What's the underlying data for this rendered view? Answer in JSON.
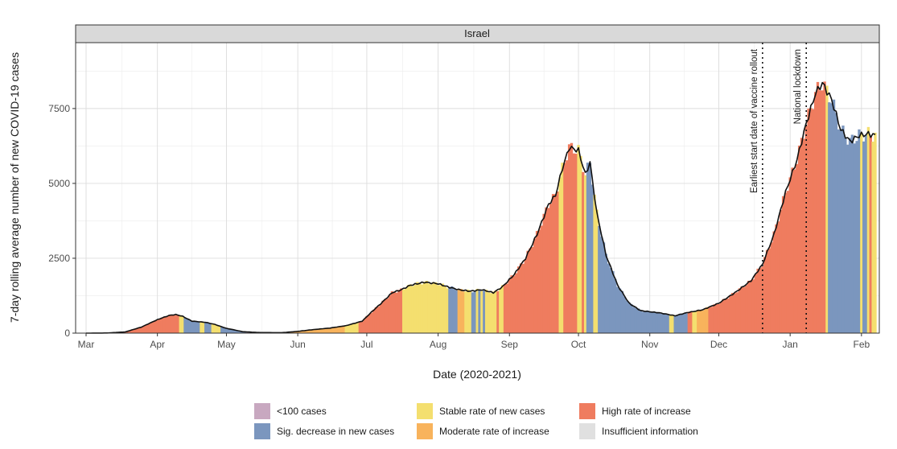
{
  "chart_data": {
    "type": "bar",
    "facet_title": "Israel",
    "xlabel": "Date (2020-2021)",
    "ylabel": "7-day rolling average number of new COVID-19 cases",
    "x_range": [
      "2020-03-01",
      "2021-02-07"
    ],
    "ylim": [
      0,
      9700
    ],
    "y_ticks": [
      0,
      2500,
      5000,
      7500
    ],
    "y_tick_labels": [
      "0",
      "2500",
      "5000",
      "7500"
    ],
    "x_ticks": [
      {
        "date": "2020-03-01",
        "label": "Mar"
      },
      {
        "date": "2020-04-01",
        "label": "Apr"
      },
      {
        "date": "2020-05-01",
        "label": "May"
      },
      {
        "date": "2020-06-01",
        "label": "Jun"
      },
      {
        "date": "2020-07-01",
        "label": "Jul"
      },
      {
        "date": "2020-08-01",
        "label": "Aug"
      },
      {
        "date": "2020-09-01",
        "label": "Sep"
      },
      {
        "date": "2020-10-01",
        "label": "Oct"
      },
      {
        "date": "2020-11-01",
        "label": "Nov"
      },
      {
        "date": "2020-12-01",
        "label": "Dec"
      },
      {
        "date": "2021-01-01",
        "label": "Jan"
      },
      {
        "date": "2021-02-01",
        "label": "Feb"
      }
    ],
    "grid": true,
    "legend_position": "bottom",
    "annotations": [
      {
        "date": "2020-12-20",
        "label": "Earliest start date of vaccine rollout"
      },
      {
        "date": "2021-01-08",
        "label": "National lockdown"
      }
    ],
    "categories": [
      {
        "key": "lt100",
        "name": "<100 cases",
        "color": "#c8a8c0"
      },
      {
        "key": "dec",
        "name": "Sig. decrease in new cases",
        "color": "#7b96be"
      },
      {
        "key": "stable",
        "name": "Stable rate of new cases",
        "color": "#f4df6f"
      },
      {
        "key": "mod",
        "name": "Moderate rate of increase",
        "color": "#f8b35c"
      },
      {
        "key": "high",
        "name": "High rate of increase",
        "color": "#ef7c5f"
      },
      {
        "key": "insuf",
        "name": "Insufficient information",
        "color": "#e0e0e0"
      }
    ],
    "rolling_average_keypoints": [
      [
        "2020-03-01",
        0
      ],
      [
        "2020-03-10",
        5
      ],
      [
        "2020-03-18",
        40
      ],
      [
        "2020-03-25",
        200
      ],
      [
        "2020-04-01",
        450
      ],
      [
        "2020-04-06",
        590
      ],
      [
        "2020-04-09",
        620
      ],
      [
        "2020-04-12",
        560
      ],
      [
        "2020-04-16",
        400
      ],
      [
        "2020-04-22",
        360
      ],
      [
        "2020-04-26",
        290
      ],
      [
        "2020-05-01",
        160
      ],
      [
        "2020-05-08",
        50
      ],
      [
        "2020-05-15",
        20
      ],
      [
        "2020-05-25",
        15
      ],
      [
        "2020-06-01",
        60
      ],
      [
        "2020-06-08",
        120
      ],
      [
        "2020-06-15",
        170
      ],
      [
        "2020-06-22",
        250
      ],
      [
        "2020-06-29",
        400
      ],
      [
        "2020-07-03",
        700
      ],
      [
        "2020-07-08",
        1050
      ],
      [
        "2020-07-12",
        1350
      ],
      [
        "2020-07-16",
        1450
      ],
      [
        "2020-07-20",
        1600
      ],
      [
        "2020-07-26",
        1700
      ],
      [
        "2020-08-01",
        1650
      ],
      [
        "2020-08-05",
        1550
      ],
      [
        "2020-08-10",
        1450
      ],
      [
        "2020-08-15",
        1400
      ],
      [
        "2020-08-20",
        1450
      ],
      [
        "2020-08-25",
        1350
      ],
      [
        "2020-08-29",
        1550
      ],
      [
        "2020-09-03",
        1950
      ],
      [
        "2020-09-08",
        2500
      ],
      [
        "2020-09-13",
        3300
      ],
      [
        "2020-09-18",
        4300
      ],
      [
        "2020-09-21",
        4600
      ],
      [
        "2020-09-24",
        5500
      ],
      [
        "2020-09-27",
        6200
      ],
      [
        "2020-10-01",
        6100
      ],
      [
        "2020-10-04",
        5300
      ],
      [
        "2020-10-06",
        5700
      ],
      [
        "2020-10-09",
        4000
      ],
      [
        "2020-10-13",
        2600
      ],
      [
        "2020-10-18",
        1600
      ],
      [
        "2020-10-23",
        1000
      ],
      [
        "2020-10-28",
        750
      ],
      [
        "2020-11-05",
        680
      ],
      [
        "2020-11-12",
        580
      ],
      [
        "2020-11-17",
        680
      ],
      [
        "2020-11-24",
        780
      ],
      [
        "2020-12-01",
        1000
      ],
      [
        "2020-12-08",
        1350
      ],
      [
        "2020-12-15",
        1750
      ],
      [
        "2020-12-20",
        2300
      ],
      [
        "2020-12-25",
        3300
      ],
      [
        "2020-12-30",
        4700
      ],
      [
        "2021-01-04",
        5800
      ],
      [
        "2021-01-08",
        7000
      ],
      [
        "2021-01-12",
        8000
      ],
      [
        "2021-01-15",
        8350
      ],
      [
        "2021-01-19",
        7800
      ],
      [
        "2021-01-23",
        6800
      ],
      [
        "2021-01-27",
        6400
      ],
      [
        "2021-01-31",
        6600
      ],
      [
        "2021-02-04",
        6650
      ],
      [
        "2021-02-07",
        6600
      ]
    ],
    "category_segments": [
      [
        "2020-03-01",
        "2020-03-15",
        "insuf"
      ],
      [
        "2020-03-15",
        "2020-04-11",
        "high"
      ],
      [
        "2020-04-11",
        "2020-04-13",
        "stable"
      ],
      [
        "2020-04-13",
        "2020-04-20",
        "dec"
      ],
      [
        "2020-04-20",
        "2020-04-22",
        "stable"
      ],
      [
        "2020-04-22",
        "2020-04-25",
        "dec"
      ],
      [
        "2020-04-25",
        "2020-04-29",
        "stable"
      ],
      [
        "2020-04-29",
        "2020-05-10",
        "dec"
      ],
      [
        "2020-05-10",
        "2020-05-28",
        "lt100"
      ],
      [
        "2020-05-28",
        "2020-06-22",
        "mod"
      ],
      [
        "2020-06-22",
        "2020-06-28",
        "stable"
      ],
      [
        "2020-06-28",
        "2020-07-17",
        "high"
      ],
      [
        "2020-07-17",
        "2020-08-06",
        "stable"
      ],
      [
        "2020-08-06",
        "2020-08-10",
        "dec"
      ],
      [
        "2020-08-10",
        "2020-08-13",
        "mod"
      ],
      [
        "2020-08-13",
        "2020-08-16",
        "stable"
      ],
      [
        "2020-08-16",
        "2020-08-18",
        "dec"
      ],
      [
        "2020-08-18",
        "2020-08-19",
        "stable"
      ],
      [
        "2020-08-19",
        "2020-08-20",
        "dec"
      ],
      [
        "2020-08-20",
        "2020-08-21",
        "stable"
      ],
      [
        "2020-08-21",
        "2020-08-22",
        "dec"
      ],
      [
        "2020-08-22",
        "2020-08-27",
        "stable"
      ],
      [
        "2020-08-27",
        "2020-08-28",
        "high"
      ],
      [
        "2020-08-28",
        "2020-08-30",
        "stable"
      ],
      [
        "2020-08-30",
        "2020-09-23",
        "high"
      ],
      [
        "2020-09-23",
        "2020-09-25",
        "stable"
      ],
      [
        "2020-09-25",
        "2020-10-01",
        "high"
      ],
      [
        "2020-10-01",
        "2020-10-03",
        "stable"
      ],
      [
        "2020-10-03",
        "2020-10-04",
        "high"
      ],
      [
        "2020-10-04",
        "2020-10-05",
        "stable"
      ],
      [
        "2020-10-05",
        "2020-10-08",
        "dec"
      ],
      [
        "2020-10-08",
        "2020-10-10",
        "stable"
      ],
      [
        "2020-10-10",
        "2020-11-10",
        "dec"
      ],
      [
        "2020-11-10",
        "2020-11-12",
        "stable"
      ],
      [
        "2020-11-12",
        "2020-11-18",
        "dec"
      ],
      [
        "2020-11-18",
        "2020-11-20",
        "high"
      ],
      [
        "2020-11-20",
        "2020-11-22",
        "stable"
      ],
      [
        "2020-11-22",
        "2020-11-27",
        "mod"
      ],
      [
        "2020-11-27",
        "2021-01-17",
        "high"
      ],
      [
        "2021-01-17",
        "2021-01-18",
        "stable"
      ],
      [
        "2021-01-18",
        "2021-02-01",
        "dec"
      ],
      [
        "2021-02-01",
        "2021-02-02",
        "stable"
      ],
      [
        "2021-02-02",
        "2021-02-04",
        "dec"
      ],
      [
        "2021-02-04",
        "2021-02-05",
        "stable"
      ],
      [
        "2021-02-05",
        "2021-02-06",
        "high"
      ],
      [
        "2021-02-06",
        "2021-02-08",
        "stable"
      ]
    ]
  }
}
